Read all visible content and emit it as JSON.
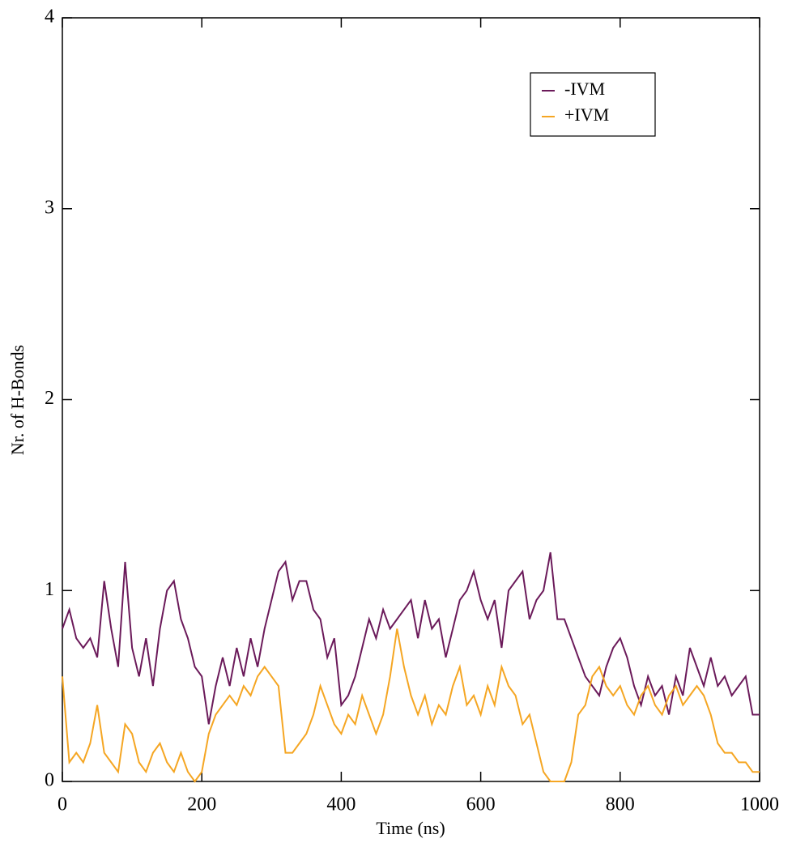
{
  "chart_data": {
    "type": "line",
    "xlabel": "Time (ns)",
    "ylabel": "Nr. of H-Bonds",
    "x": [
      0,
      10,
      20,
      30,
      40,
      50,
      60,
      70,
      80,
      90,
      100,
      110,
      120,
      130,
      140,
      150,
      160,
      170,
      180,
      190,
      200,
      210,
      220,
      230,
      240,
      250,
      260,
      270,
      280,
      290,
      300,
      310,
      320,
      330,
      340,
      350,
      360,
      370,
      380,
      390,
      400,
      410,
      420,
      430,
      440,
      450,
      460,
      470,
      480,
      490,
      500,
      510,
      520,
      530,
      540,
      550,
      560,
      570,
      580,
      590,
      600,
      610,
      620,
      630,
      640,
      650,
      660,
      670,
      680,
      690,
      700,
      710,
      720,
      730,
      740,
      750,
      760,
      770,
      780,
      790,
      800,
      810,
      820,
      830,
      840,
      850,
      860,
      870,
      880,
      890,
      900,
      910,
      920,
      930,
      940,
      950,
      960,
      970,
      980,
      990,
      1000
    ],
    "series": [
      {
        "name": "-IVM",
        "color": "#6b1a5a",
        "values": [
          0.8,
          0.9,
          0.75,
          0.7,
          0.75,
          0.65,
          1.05,
          0.8,
          0.6,
          1.15,
          0.7,
          0.55,
          0.75,
          0.5,
          0.8,
          1.0,
          1.05,
          0.85,
          0.75,
          0.6,
          0.55,
          0.3,
          0.5,
          0.65,
          0.5,
          0.7,
          0.55,
          0.75,
          0.6,
          0.8,
          0.95,
          1.1,
          1.15,
          0.95,
          1.05,
          1.05,
          0.9,
          0.85,
          0.65,
          0.75,
          0.4,
          0.45,
          0.55,
          0.7,
          0.85,
          0.75,
          0.9,
          0.8,
          0.85,
          0.9,
          0.95,
          0.75,
          0.95,
          0.8,
          0.85,
          0.65,
          0.8,
          0.95,
          1.0,
          1.1,
          0.95,
          0.85,
          0.95,
          0.7,
          1.0,
          1.05,
          1.1,
          0.85,
          0.95,
          1.0,
          1.2,
          0.85,
          0.85,
          0.75,
          0.65,
          0.55,
          0.5,
          0.45,
          0.6,
          0.7,
          0.75,
          0.65,
          0.5,
          0.4,
          0.55,
          0.45,
          0.5,
          0.35,
          0.55,
          0.45,
          0.7,
          0.6,
          0.5,
          0.65,
          0.5,
          0.55,
          0.45,
          0.5,
          0.55,
          0.35,
          0.35
        ]
      },
      {
        "name": "+IVM",
        "color": "#f5a623",
        "values": [
          0.55,
          0.1,
          0.15,
          0.1,
          0.2,
          0.4,
          0.15,
          0.1,
          0.05,
          0.3,
          0.25,
          0.1,
          0.05,
          0.15,
          0.2,
          0.1,
          0.05,
          0.15,
          0.05,
          0.0,
          0.05,
          0.25,
          0.35,
          0.4,
          0.45,
          0.4,
          0.5,
          0.45,
          0.55,
          0.6,
          0.55,
          0.5,
          0.15,
          0.15,
          0.2,
          0.25,
          0.35,
          0.5,
          0.4,
          0.3,
          0.25,
          0.35,
          0.3,
          0.45,
          0.35,
          0.25,
          0.35,
          0.55,
          0.8,
          0.6,
          0.45,
          0.35,
          0.45,
          0.3,
          0.4,
          0.35,
          0.5,
          0.6,
          0.4,
          0.45,
          0.35,
          0.5,
          0.4,
          0.6,
          0.5,
          0.45,
          0.3,
          0.35,
          0.2,
          0.05,
          0.0,
          0.0,
          0.0,
          0.1,
          0.35,
          0.4,
          0.55,
          0.6,
          0.5,
          0.45,
          0.5,
          0.4,
          0.35,
          0.45,
          0.5,
          0.4,
          0.35,
          0.45,
          0.5,
          0.4,
          0.45,
          0.5,
          0.45,
          0.35,
          0.2,
          0.15,
          0.15,
          0.1,
          0.1,
          0.05,
          0.05
        ]
      }
    ],
    "xlim": [
      0,
      1000
    ],
    "xticks": [
      0,
      200,
      400,
      600,
      800,
      1000
    ],
    "ylim": [
      0,
      4
    ],
    "yticks": [
      0,
      1,
      2,
      3,
      4
    ],
    "legend": "upper right",
    "grid": false
  }
}
